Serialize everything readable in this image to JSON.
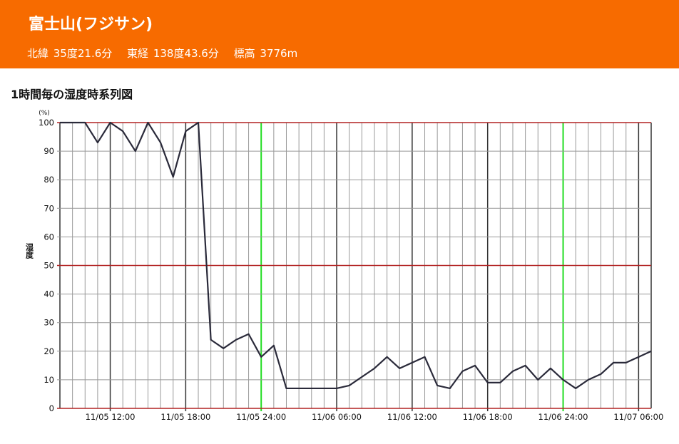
{
  "header": {
    "title": "富士山(フジサン)",
    "latitude": "北緯 35度21.6分",
    "longitude": "東経 138度43.6分",
    "elevation": "標高 3776m"
  },
  "chart_data": {
    "type": "line",
    "title": "1時間毎の湿度時系列図",
    "ylabel": "湿度",
    "yunit": "(%)",
    "ylim": [
      0,
      100
    ],
    "yticks": [
      0,
      10,
      20,
      30,
      40,
      50,
      60,
      70,
      80,
      90,
      100
    ],
    "x_start": "11/05 08:00",
    "x_step_hours": 1,
    "xtick_labels": [
      {
        "hour_index": 4,
        "label": "11/05 12:00"
      },
      {
        "hour_index": 10,
        "label": "11/05 18:00"
      },
      {
        "hour_index": 16,
        "label": "11/05 24:00"
      },
      {
        "hour_index": 22,
        "label": "11/06 06:00"
      },
      {
        "hour_index": 28,
        "label": "11/06 12:00"
      },
      {
        "hour_index": 34,
        "label": "11/06 18:00"
      },
      {
        "hour_index": 40,
        "label": "11/06 24:00"
      },
      {
        "hour_index": 46,
        "label": "11/07 06:00"
      }
    ],
    "series": [
      {
        "name": "湿度",
        "values": [
          100,
          100,
          100,
          93,
          100,
          97,
          90,
          100,
          93,
          81,
          97,
          100,
          24,
          21,
          24,
          26,
          18,
          22,
          7,
          7,
          7,
          7,
          7,
          8,
          11,
          14,
          18,
          14,
          16,
          18,
          8,
          7,
          13,
          15,
          9,
          9,
          13,
          15,
          10,
          14,
          10,
          7,
          10,
          12,
          16,
          16,
          18,
          20
        ]
      }
    ],
    "colors": {
      "line": "#2a2a3a",
      "grid": "#999999",
      "major": "#333333",
      "midnight": "#22dd22",
      "ref": "#b22222"
    }
  }
}
